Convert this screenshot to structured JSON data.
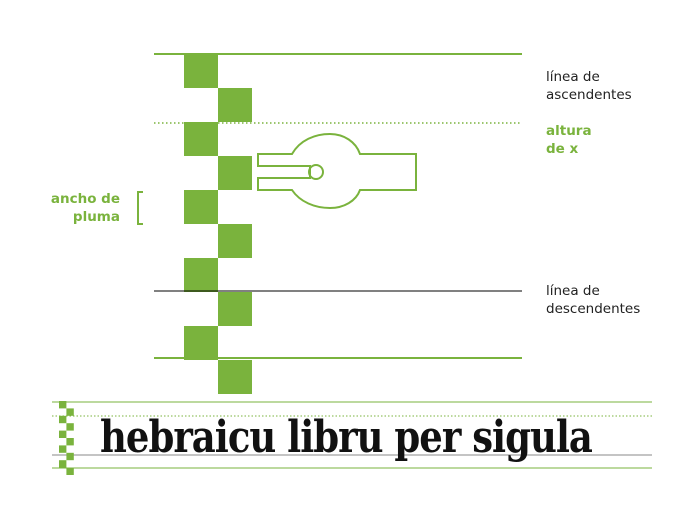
{
  "labels": {
    "ascender": "línea de\nascendentes",
    "x_height": "altura\nde x",
    "pen_width": "ancho de\npluma",
    "descender": "línea de\ndescendentes"
  },
  "sample_text": "hebraicu libru per sigula",
  "colors": {
    "accent": "#7ab33d",
    "text": "#222222",
    "ink": "#111111",
    "baseline": "#000000"
  },
  "pen_nib_widths": 9
}
